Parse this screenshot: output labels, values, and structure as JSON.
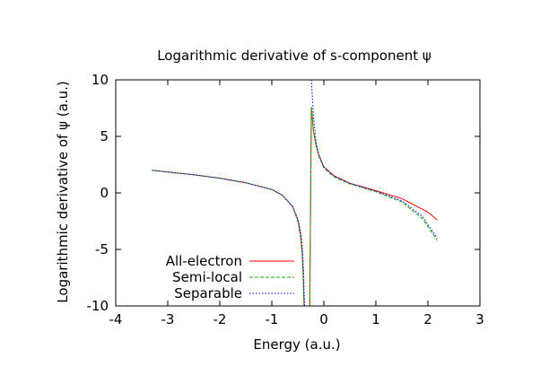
{
  "chart_data": {
    "type": "line",
    "title": "Logarithmic derivative of s-component ψ",
    "xlabel": "Energy (a.u.)",
    "ylabel": "Logarithmic derivative of ψ (a.u.)",
    "xlim": [
      -4,
      3
    ],
    "ylim": [
      -10,
      10
    ],
    "xticks": [
      "-4",
      "-3",
      "-2",
      "-1",
      "0",
      "1",
      "2",
      "3"
    ],
    "yticks": [
      "-10",
      "-5",
      "0",
      "5",
      "10"
    ],
    "grid": false,
    "legend_position": "bottom-left",
    "series": [
      {
        "name": "All-electron",
        "color": "#ff0000",
        "dash": "solid",
        "points": [
          [
            -3.3,
            2.0
          ],
          [
            -3.0,
            1.85
          ],
          [
            -2.5,
            1.6
          ],
          [
            -2.0,
            1.3
          ],
          [
            -1.5,
            0.9
          ],
          [
            -1.0,
            0.3
          ],
          [
            -0.8,
            -0.2
          ],
          [
            -0.6,
            -1.2
          ],
          [
            -0.5,
            -2.4
          ],
          [
            -0.45,
            -3.6
          ],
          [
            -0.42,
            -5.0
          ],
          [
            -0.4,
            -6.8
          ],
          [
            -0.38,
            -10.0
          ],
          null,
          [
            -0.27,
            -10.0
          ],
          [
            -0.24,
            7.6
          ],
          [
            -0.2,
            5.5
          ],
          [
            -0.15,
            4.2
          ],
          [
            -0.1,
            3.4
          ],
          [
            0.0,
            2.3
          ],
          [
            0.2,
            1.5
          ],
          [
            0.5,
            0.85
          ],
          [
            1.0,
            0.2
          ],
          [
            1.5,
            -0.5
          ],
          [
            2.0,
            -1.7
          ],
          [
            2.18,
            -2.4
          ]
        ]
      },
      {
        "name": "Semi-local",
        "color": "#00b000",
        "dash": "dash",
        "points": [
          [
            -3.3,
            2.0
          ],
          [
            -3.0,
            1.85
          ],
          [
            -2.5,
            1.6
          ],
          [
            -2.0,
            1.3
          ],
          [
            -1.5,
            0.9
          ],
          [
            -1.0,
            0.3
          ],
          [
            -0.8,
            -0.2
          ],
          [
            -0.6,
            -1.2
          ],
          [
            -0.5,
            -2.5
          ],
          [
            -0.45,
            -3.8
          ],
          [
            -0.42,
            -5.2
          ],
          [
            -0.4,
            -7.0
          ],
          [
            -0.38,
            -10.0
          ],
          null,
          [
            -0.27,
            -10.0
          ],
          [
            -0.24,
            7.6
          ],
          [
            -0.2,
            5.5
          ],
          [
            -0.15,
            4.2
          ],
          [
            -0.1,
            3.3
          ],
          [
            0.0,
            2.2
          ],
          [
            0.2,
            1.4
          ],
          [
            0.5,
            0.8
          ],
          [
            1.0,
            0.1
          ],
          [
            1.5,
            -0.8
          ],
          [
            1.9,
            -2.3
          ],
          [
            2.18,
            -4.2
          ]
        ]
      },
      {
        "name": "Separable",
        "color": "#0000ff",
        "dash": "dot",
        "points": [
          [
            -3.3,
            2.0
          ],
          [
            -3.0,
            1.85
          ],
          [
            -2.5,
            1.6
          ],
          [
            -2.0,
            1.3
          ],
          [
            -1.5,
            0.9
          ],
          [
            -1.0,
            0.3
          ],
          [
            -0.8,
            -0.2
          ],
          [
            -0.6,
            -1.2
          ],
          [
            -0.5,
            -2.3
          ],
          [
            -0.44,
            -3.6
          ],
          [
            -0.41,
            -5.0
          ],
          [
            -0.39,
            -6.8
          ],
          [
            -0.37,
            -10.0
          ],
          null,
          [
            -0.24,
            10.0
          ],
          [
            -0.2,
            6.8
          ],
          [
            -0.15,
            4.5
          ],
          [
            -0.1,
            3.4
          ],
          [
            0.0,
            2.3
          ],
          [
            0.2,
            1.5
          ],
          [
            0.5,
            0.85
          ],
          [
            1.0,
            0.15
          ],
          [
            1.5,
            -0.7
          ],
          [
            1.9,
            -2.1
          ],
          [
            2.18,
            -4.0
          ]
        ]
      }
    ]
  }
}
